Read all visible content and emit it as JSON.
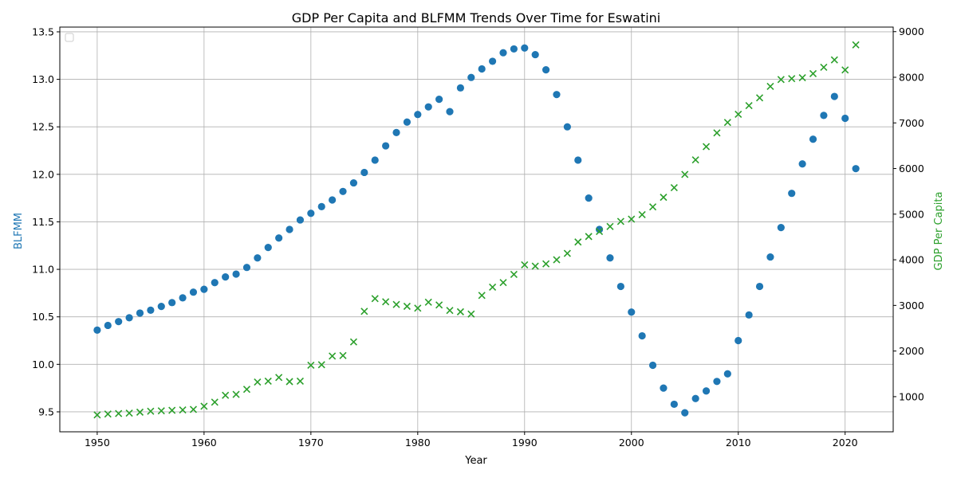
{
  "chart_data": {
    "type": "scatter",
    "title": "GDP Per Capita and BLFMM Trends Over Time for Eswatini",
    "xlabel": "Year",
    "ylabel_left": "BLFMM",
    "ylabel_right": "GDP Per Capita",
    "xlim": [
      1946.5,
      2024.5
    ],
    "ylim_left": [
      9.29,
      13.55
    ],
    "ylim_right": [
      230,
      9100
    ],
    "x_ticks": [
      1950,
      1960,
      1970,
      1980,
      1990,
      2000,
      2010,
      2020
    ],
    "y_ticks_left": [
      9.5,
      10.0,
      10.5,
      11.0,
      11.5,
      12.0,
      12.5,
      13.0,
      13.5
    ],
    "y_ticks_right": [
      1000,
      2000,
      3000,
      4000,
      5000,
      6000,
      7000,
      8000,
      9000
    ],
    "grid": true,
    "legend_placement": "upper-left",
    "colors": {
      "blfmm": "#1f77b4",
      "gdp": "#2ca02c",
      "grid": "#b0b0b0"
    },
    "x": [
      1950,
      1951,
      1952,
      1953,
      1954,
      1955,
      1956,
      1957,
      1958,
      1959,
      1960,
      1961,
      1962,
      1963,
      1964,
      1965,
      1966,
      1967,
      1968,
      1969,
      1970,
      1971,
      1972,
      1973,
      1974,
      1975,
      1976,
      1977,
      1978,
      1979,
      1980,
      1981,
      1982,
      1983,
      1984,
      1985,
      1986,
      1987,
      1988,
      1989,
      1990,
      1991,
      1992,
      1993,
      1994,
      1995,
      1996,
      1997,
      1998,
      1999,
      2000,
      2001,
      2002,
      2003,
      2004,
      2005,
      2006,
      2007,
      2008,
      2009,
      2010,
      2011,
      2012,
      2013,
      2014,
      2015,
      2016,
      2017,
      2018,
      2019,
      2020,
      2021
    ],
    "series": [
      {
        "axis": "left",
        "marker": "circle",
        "values": [
          10.36,
          10.41,
          10.45,
          10.49,
          10.54,
          10.57,
          10.61,
          10.65,
          10.7,
          10.76,
          10.79,
          10.86,
          10.92,
          10.95,
          11.02,
          11.12,
          11.23,
          11.33,
          11.42,
          11.52,
          11.59,
          11.66,
          11.73,
          11.82,
          11.91,
          12.02,
          12.15,
          12.3,
          12.44,
          12.55,
          12.63,
          12.71,
          12.79,
          12.66,
          12.91,
          13.02,
          13.11,
          13.19,
          13.28,
          13.32,
          13.33,
          13.26,
          13.1,
          12.84,
          12.5,
          12.15,
          11.75,
          11.42,
          11.12,
          10.82,
          10.55,
          10.3,
          9.99,
          9.75,
          9.58,
          9.49,
          9.64,
          9.72,
          9.82,
          9.9,
          10.25,
          10.52,
          10.82,
          11.13,
          11.44,
          11.8,
          12.11,
          12.37,
          12.62,
          12.82,
          12.59,
          12.06
        ]
      },
      {
        "axis": "right",
        "marker": "x",
        "values": [
          600,
          620,
          630,
          640,
          660,
          680,
          690,
          700,
          710,
          720,
          790,
          880,
          1030,
          1050,
          1160,
          1320,
          1340,
          1420,
          1330,
          1340,
          1690,
          1700,
          1890,
          1900,
          2200,
          2870,
          3150,
          3080,
          3020,
          2980,
          2940,
          3070,
          3010,
          2890,
          2860,
          2810,
          3220,
          3400,
          3500,
          3680,
          3890,
          3860,
          3910,
          4000,
          4140,
          4390,
          4510,
          4620,
          4730,
          4840,
          4890,
          4990,
          5160,
          5370,
          5580,
          5870,
          6190,
          6480,
          6780,
          7010,
          7190,
          7380,
          7550,
          7800,
          7950,
          7970,
          7990,
          8080,
          8220,
          8380,
          8160,
          8710
        ]
      }
    ]
  }
}
